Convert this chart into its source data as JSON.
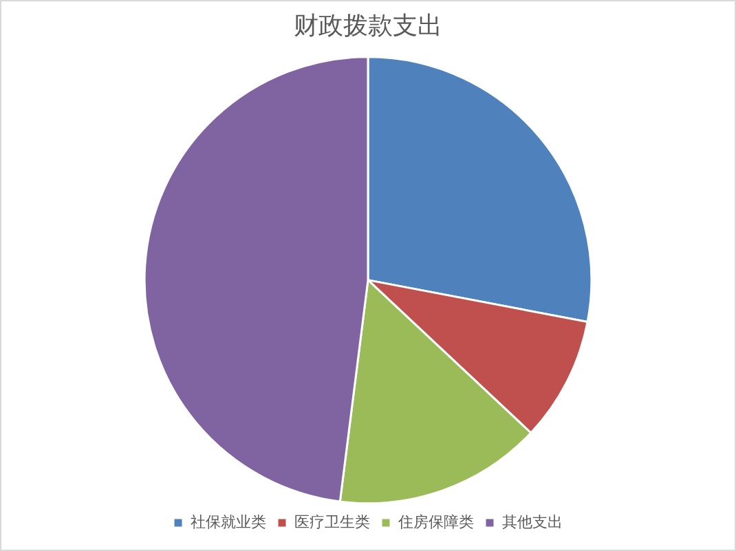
{
  "chart_data": {
    "type": "pie",
    "title": "财政拨款支出",
    "categories": [
      "社保就业类",
      "医疗卫生类",
      "住房保障类",
      "其他支出"
    ],
    "values": [
      28,
      9,
      15,
      48
    ],
    "colors": [
      "#4f81bd",
      "#c0504d",
      "#9bbb59",
      "#8064a2"
    ],
    "legend": "bottom"
  }
}
